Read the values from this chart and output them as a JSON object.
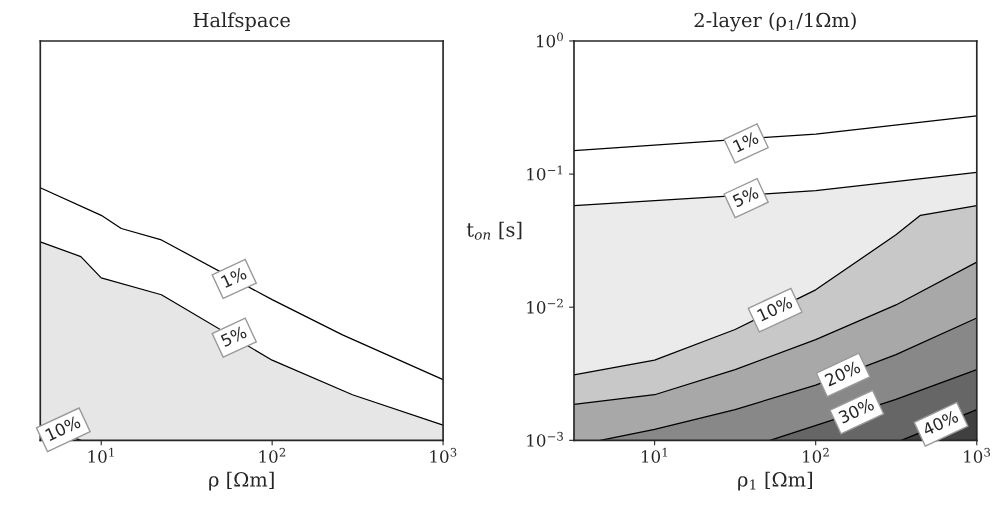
{
  "chart_data": [
    {
      "type": "area",
      "title": "Halfspace",
      "xlabel": "ρ [Ωm]",
      "log": "xy",
      "xlim": [
        4.4,
        1000
      ],
      "ylim": [
        0.001,
        1
      ],
      "tick_labels": "x",
      "grid": false,
      "xticks": [
        {
          "value": 10,
          "label": "10$^{1}$"
        },
        {
          "value": 100,
          "label": "10$^{2}$"
        },
        {
          "value": 1000,
          "label": "10$^{3}$"
        }
      ],
      "series": [
        {
          "type": "line",
          "color": "#000000",
          "x": [
            4.4,
            10,
            13.1,
            22.5,
            100,
            258,
            1000
          ],
          "values": [
            0.079,
            0.049,
            0.039,
            0.032,
            0.0114,
            0.0062,
            0.00286
          ]
        },
        {
          "type": "area",
          "color": "#e6e6e6",
          "x": [
            4.4,
            7.6,
            10,
            22.5,
            100,
            295,
            1000
          ],
          "values": [
            0.031,
            0.024,
            0.0166,
            0.0124,
            0.004,
            0.0022,
            0.0013
          ]
        },
        {
          "type": "area",
          "color": "#c8c8c8",
          "x": [
            4.4,
            7.6
          ],
          "values": [
            0.0013,
            0.001
          ]
        }
      ],
      "annotations": [
        {
          "text": "1%",
          "x": 60,
          "y": 0.0163
        },
        {
          "text": "5%",
          "x": 60,
          "y": 0.0059
        },
        {
          "text": "10%",
          "x": 6,
          "y": 0.0012
        }
      ]
    },
    {
      "type": "area",
      "title": "2-layer (ρ$_{1}$/1Ωm)",
      "xlabel": "ρ$_{1}$ [Ωm]",
      "ylabel": "t$_{on}$ [s]",
      "log": "xy",
      "xlim": [
        3.16,
        1000
      ],
      "ylim": [
        0.001,
        1
      ],
      "grid": false,
      "xticks": [
        {
          "value": 10,
          "label": "10$^{1}$"
        },
        {
          "value": 100,
          "label": "10$^{2}$"
        },
        {
          "value": 1000,
          "label": "10$^{3}$"
        }
      ],
      "yticks": [
        {
          "value": 0.001,
          "label": "10$^{−3}$"
        },
        {
          "value": 0.01,
          "label": "10$^{−2}$"
        },
        {
          "value": 0.1,
          "label": "10$^{−1}$"
        },
        {
          "value": 1,
          "label": "10$^{0}$"
        }
      ],
      "series": [
        {
          "type": "line",
          "color": "#000000",
          "x": [
            3.16,
            100,
            1000
          ],
          "values": [
            0.15,
            0.2,
            0.274
          ]
        },
        {
          "type": "area",
          "color": "#ebebeb",
          "x": [
            3.16,
            100,
            1000
          ],
          "values": [
            0.058,
            0.075,
            0.103
          ]
        },
        {
          "type": "area",
          "color": "#c8c8c8",
          "x": [
            3.16,
            10,
            31.6,
            100,
            315,
            447,
            1000
          ],
          "values": [
            0.0031,
            0.004,
            0.0068,
            0.0135,
            0.035,
            0.049,
            0.058
          ]
        },
        {
          "type": "area",
          "color": "#a8a8a8",
          "x": [
            3.16,
            10,
            31.6,
            100,
            315,
            1000
          ],
          "values": [
            0.00186,
            0.0022,
            0.0034,
            0.0057,
            0.0104,
            0.0218
          ]
        },
        {
          "type": "area",
          "color": "#888888",
          "x": [
            4.6,
            10,
            31.6,
            100,
            315,
            1000
          ],
          "values": [
            0.001,
            0.00121,
            0.0017,
            0.0026,
            0.0044,
            0.0083
          ]
        },
        {
          "type": "area",
          "color": "#666666",
          "x": [
            52,
            315,
            1000
          ],
          "values": [
            0.001,
            0.00203,
            0.0034
          ]
        },
        {
          "type": "area",
          "color": "#404040",
          "x": [
            340,
            1000
          ],
          "values": [
            0.001,
            0.0017
          ]
        }
      ],
      "annotations": [
        {
          "text": "1%",
          "x": 37,
          "y": 0.17
        },
        {
          "text": "5%",
          "x": 37,
          "y": 0.066
        },
        {
          "text": "10%",
          "x": 56,
          "y": 0.0095
        },
        {
          "text": "20%",
          "x": 148,
          "y": 0.0031
        },
        {
          "text": "30%",
          "x": 180,
          "y": 0.00163
        },
        {
          "text": "40%",
          "x": 600,
          "y": 0.00132
        }
      ]
    }
  ]
}
